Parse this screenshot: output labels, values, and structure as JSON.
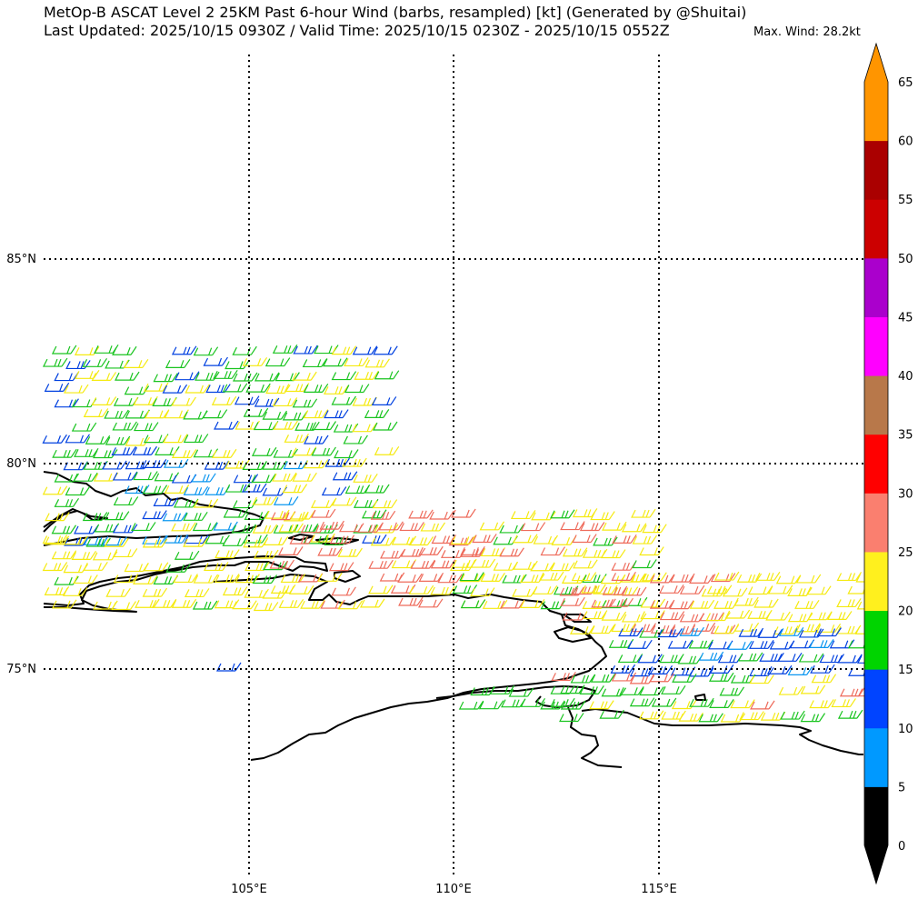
{
  "header": {
    "title_line1": "MetOp-B ASCAT Level 2 25KM Past 6-hour Wind (barbs, resampled) [kt] (Generated by @Shuitai)",
    "title_line2": "Last Updated: 2025/10/15 0930Z / Valid Time: 2025/10/15 0230Z - 2025/10/15 0552Z",
    "max_wind": "Max. Wind: 28.2kt"
  },
  "map": {
    "lon_labels": [
      "105°E",
      "110°E",
      "115°E"
    ],
    "lat_labels": [
      "85°N",
      "80°N",
      "75°N"
    ]
  },
  "colorbar": {
    "tick_labels": [
      "0",
      "5",
      "10",
      "15",
      "20",
      "25",
      "30",
      "35",
      "40",
      "45",
      "50",
      "55",
      "60",
      "65"
    ],
    "colors": [
      "#000000",
      "#0099ff",
      "#0044ff",
      "#00d400",
      "#fff01e",
      "#fa7f6f",
      "#ff0000",
      "#b8784a",
      "#ff00ff",
      "#aa00cc",
      "#cc0000",
      "#aa0000",
      "#ff9500",
      "#ff9500"
    ],
    "extend_low_color": "#000000",
    "extend_high_color": "#ff9500"
  },
  "wind_field": {
    "units": "kt",
    "color_key": {
      "blue": "10-15",
      "cyan": "5-10",
      "green": "15-20",
      "yellow": "20-25",
      "salmon": "25-30"
    }
  }
}
